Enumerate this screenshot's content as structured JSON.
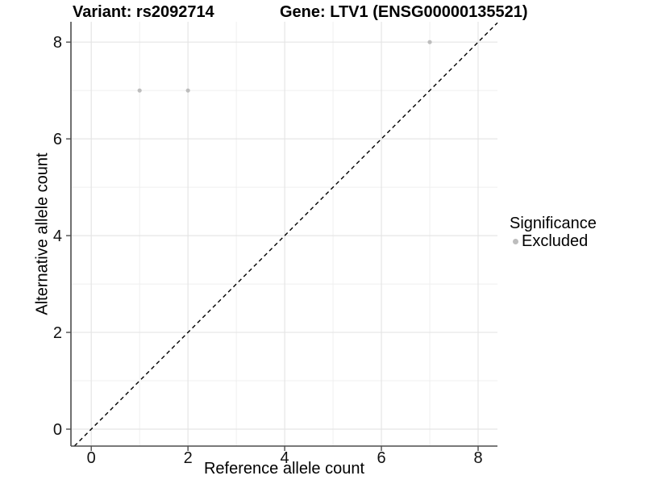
{
  "header": {
    "variant_title": "Variant: rs2092714",
    "gene_title": "Gene: LTV1 (ENSG00000135521)"
  },
  "legend": {
    "title": "Significance",
    "items": [
      {
        "label": "Excluded",
        "color": "#bdbdbd"
      }
    ]
  },
  "chart_data": {
    "type": "scatter",
    "title": "Variant: rs2092714   Gene: LTV1 (ENSG00000135521)",
    "xlabel": "Reference allele count",
    "ylabel": "Alternative allele count",
    "xlim": [
      -0.42,
      8.4
    ],
    "ylim": [
      -0.35,
      8.42
    ],
    "x_ticks": [
      0,
      2,
      4,
      6,
      8
    ],
    "y_ticks": [
      0,
      2,
      4,
      6,
      8
    ],
    "x_minor_gridlines": [
      1,
      3,
      5,
      7
    ],
    "y_minor_gridlines": [
      1,
      3,
      5,
      7
    ],
    "grid": true,
    "legend_position": "right",
    "series": [
      {
        "name": "Excluded",
        "color": "#bdbdbd",
        "points": [
          [
            1,
            7
          ],
          [
            2,
            7
          ],
          [
            7,
            8
          ]
        ]
      }
    ],
    "reference_line": {
      "type": "identity",
      "equation": "y = x",
      "style": "dashed",
      "color": "#000000"
    }
  },
  "colors": {
    "background": "#ffffff",
    "major_gridline": "#e5e5e5",
    "minor_gridline": "#efefef",
    "axis_line": "#4d4d4d",
    "point": "#bdbdbd",
    "dashed_line": "#000000"
  }
}
